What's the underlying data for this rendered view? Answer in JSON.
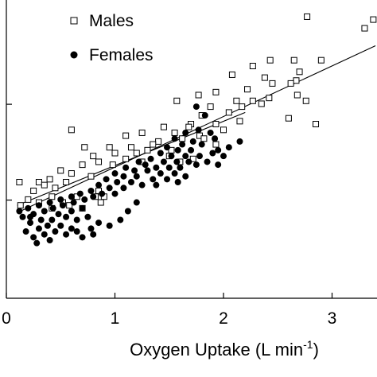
{
  "chart_data": {
    "type": "scatter",
    "xlabel": "Oxygen Uptake (L min",
    "xlabel_superscript": "-1",
    "xlabel_close": ")",
    "ylabel": "",
    "x_ticks": [
      "0",
      "1",
      "2",
      "3"
    ],
    "xlim": [
      0,
      3.4
    ],
    "ylim": [
      0,
      1
    ],
    "legend": {
      "placement": "top-left"
    },
    "series": [
      {
        "name": "Males",
        "marker": "open-square",
        "color": "#000000",
        "trendline": {
          "x": [
            0.1,
            3.4
          ],
          "y": [
            0.295,
            0.87
          ]
        },
        "points": [
          [
            2.77,
            0.97
          ],
          [
            3.38,
            0.96
          ],
          [
            3.3,
            0.93
          ],
          [
            2.9,
            0.82
          ],
          [
            2.65,
            0.82
          ],
          [
            2.43,
            0.82
          ],
          [
            2.27,
            0.8
          ],
          [
            2.7,
            0.78
          ],
          [
            2.67,
            0.75
          ],
          [
            2.38,
            0.76
          ],
          [
            2.08,
            0.77
          ],
          [
            2.62,
            0.74
          ],
          [
            2.45,
            0.74
          ],
          [
            2.22,
            0.72
          ],
          [
            1.93,
            0.71
          ],
          [
            2.42,
            0.69
          ],
          [
            2.68,
            0.7
          ],
          [
            2.27,
            0.68
          ],
          [
            2.76,
            0.68
          ],
          [
            2.35,
            0.67
          ],
          [
            2.12,
            0.68
          ],
          [
            1.57,
            0.68
          ],
          [
            1.77,
            0.7
          ],
          [
            2.17,
            0.66
          ],
          [
            1.88,
            0.66
          ],
          [
            2.05,
            0.64
          ],
          [
            2.6,
            0.62
          ],
          [
            1.8,
            0.63
          ],
          [
            2.15,
            0.61
          ],
          [
            2.85,
            0.6
          ],
          [
            1.7,
            0.6
          ],
          [
            1.93,
            0.6
          ],
          [
            1.68,
            0.59
          ],
          [
            1.45,
            0.59
          ],
          [
            2.0,
            0.58
          ],
          [
            1.55,
            0.57
          ],
          [
            1.25,
            0.57
          ],
          [
            1.78,
            0.56
          ],
          [
            1.1,
            0.56
          ],
          [
            0.6,
            0.58
          ],
          [
            1.62,
            0.55
          ],
          [
            1.82,
            0.55
          ],
          [
            1.4,
            0.54
          ],
          [
            1.35,
            0.53
          ],
          [
            1.93,
            0.53
          ],
          [
            0.95,
            0.52
          ],
          [
            1.15,
            0.52
          ],
          [
            1.3,
            0.51
          ],
          [
            1.52,
            0.51
          ],
          [
            0.72,
            0.52
          ],
          [
            1.0,
            0.5
          ],
          [
            1.2,
            0.5
          ],
          [
            0.8,
            0.49
          ],
          [
            1.1,
            0.48
          ],
          [
            0.85,
            0.47
          ],
          [
            0.98,
            0.46
          ],
          [
            1.5,
            0.49
          ],
          [
            1.6,
            0.47
          ],
          [
            1.72,
            0.48
          ],
          [
            1.25,
            0.47
          ],
          [
            0.7,
            0.46
          ],
          [
            0.78,
            0.42
          ],
          [
            0.5,
            0.44
          ],
          [
            0.6,
            0.43
          ],
          [
            0.4,
            0.41
          ],
          [
            0.3,
            0.4
          ],
          [
            0.55,
            0.4
          ],
          [
            0.45,
            0.38
          ],
          [
            0.12,
            0.4
          ],
          [
            0.25,
            0.37
          ],
          [
            0.35,
            0.39
          ],
          [
            0.85,
            0.37
          ],
          [
            0.9,
            0.35
          ],
          [
            0.65,
            0.35
          ],
          [
            0.42,
            0.35
          ],
          [
            0.2,
            0.34
          ],
          [
            0.52,
            0.33
          ],
          [
            0.58,
            0.32
          ],
          [
            0.3,
            0.33
          ],
          [
            0.7,
            0.31
          ],
          [
            0.13,
            0.32
          ],
          [
            0.42,
            0.31
          ],
          [
            0.82,
            0.35
          ],
          [
            0.87,
            0.33
          ]
        ]
      },
      {
        "name": "Females",
        "marker": "filled-circle",
        "color": "#000000",
        "trendline": {
          "x": [
            0.1,
            2.2
          ],
          "y": [
            0.32,
            0.64
          ]
        },
        "points": [
          [
            1.75,
            0.66
          ],
          [
            1.83,
            0.63
          ],
          [
            1.77,
            0.58
          ],
          [
            1.65,
            0.57
          ],
          [
            1.88,
            0.57
          ],
          [
            1.55,
            0.55
          ],
          [
            1.62,
            0.53
          ],
          [
            1.72,
            0.54
          ],
          [
            1.8,
            0.53
          ],
          [
            1.92,
            0.55
          ],
          [
            1.48,
            0.52
          ],
          [
            1.58,
            0.51
          ],
          [
            1.7,
            0.51
          ],
          [
            1.95,
            0.51
          ],
          [
            2.05,
            0.52
          ],
          [
            2.15,
            0.54
          ],
          [
            1.42,
            0.5
          ],
          [
            1.52,
            0.49
          ],
          [
            1.65,
            0.49
          ],
          [
            1.78,
            0.49
          ],
          [
            1.9,
            0.5
          ],
          [
            2.0,
            0.49
          ],
          [
            1.33,
            0.48
          ],
          [
            1.45,
            0.47
          ],
          [
            1.57,
            0.47
          ],
          [
            1.68,
            0.47
          ],
          [
            1.85,
            0.47
          ],
          [
            1.22,
            0.47
          ],
          [
            1.28,
            0.46
          ],
          [
            1.38,
            0.45
          ],
          [
            1.5,
            0.45
          ],
          [
            1.6,
            0.45
          ],
          [
            1.75,
            0.46
          ],
          [
            1.95,
            0.46
          ],
          [
            1.1,
            0.45
          ],
          [
            1.18,
            0.44
          ],
          [
            1.3,
            0.44
          ],
          [
            1.42,
            0.43
          ],
          [
            1.55,
            0.43
          ],
          [
            1.65,
            0.42
          ],
          [
            1.0,
            0.43
          ],
          [
            1.08,
            0.42
          ],
          [
            1.2,
            0.42
          ],
          [
            1.35,
            0.41
          ],
          [
            1.48,
            0.41
          ],
          [
            1.58,
            0.4
          ],
          [
            0.92,
            0.41
          ],
          [
            1.02,
            0.4
          ],
          [
            1.15,
            0.4
          ],
          [
            1.25,
            0.39
          ],
          [
            1.38,
            0.39
          ],
          [
            0.85,
            0.39
          ],
          [
            0.95,
            0.38
          ],
          [
            1.08,
            0.38
          ],
          [
            0.78,
            0.37
          ],
          [
            0.88,
            0.36
          ],
          [
            1.0,
            0.36
          ],
          [
            0.68,
            0.36
          ],
          [
            0.8,
            0.35
          ],
          [
            0.6,
            0.35
          ],
          [
            0.72,
            0.34
          ],
          [
            0.5,
            0.34
          ],
          [
            0.62,
            0.33
          ],
          [
            0.4,
            0.33
          ],
          [
            0.52,
            0.32
          ],
          [
            0.3,
            0.32
          ],
          [
            0.43,
            0.31
          ],
          [
            0.2,
            0.31
          ],
          [
            0.35,
            0.3
          ],
          [
            0.12,
            0.3
          ],
          [
            0.25,
            0.29
          ],
          [
            0.48,
            0.29
          ],
          [
            0.6,
            0.3
          ],
          [
            0.7,
            0.31
          ],
          [
            0.15,
            0.28
          ],
          [
            0.32,
            0.27
          ],
          [
            0.42,
            0.27
          ],
          [
            0.55,
            0.28
          ],
          [
            0.22,
            0.26
          ],
          [
            0.38,
            0.25
          ],
          [
            0.5,
            0.25
          ],
          [
            0.65,
            0.27
          ],
          [
            0.75,
            0.28
          ],
          [
            0.3,
            0.24
          ],
          [
            0.45,
            0.23
          ],
          [
            0.18,
            0.23
          ],
          [
            0.6,
            0.24
          ],
          [
            0.35,
            0.22
          ],
          [
            0.25,
            0.21
          ],
          [
            0.55,
            0.22
          ],
          [
            0.65,
            0.23
          ],
          [
            0.78,
            0.24
          ],
          [
            0.85,
            0.26
          ],
          [
            0.28,
            0.19
          ],
          [
            0.4,
            0.2
          ],
          [
            0.7,
            0.21
          ],
          [
            0.8,
            0.22
          ],
          [
            0.95,
            0.25
          ],
          [
            1.05,
            0.27
          ],
          [
            1.12,
            0.3
          ],
          [
            1.2,
            0.33
          ],
          [
            0.22,
            0.28
          ]
        ]
      }
    ]
  }
}
